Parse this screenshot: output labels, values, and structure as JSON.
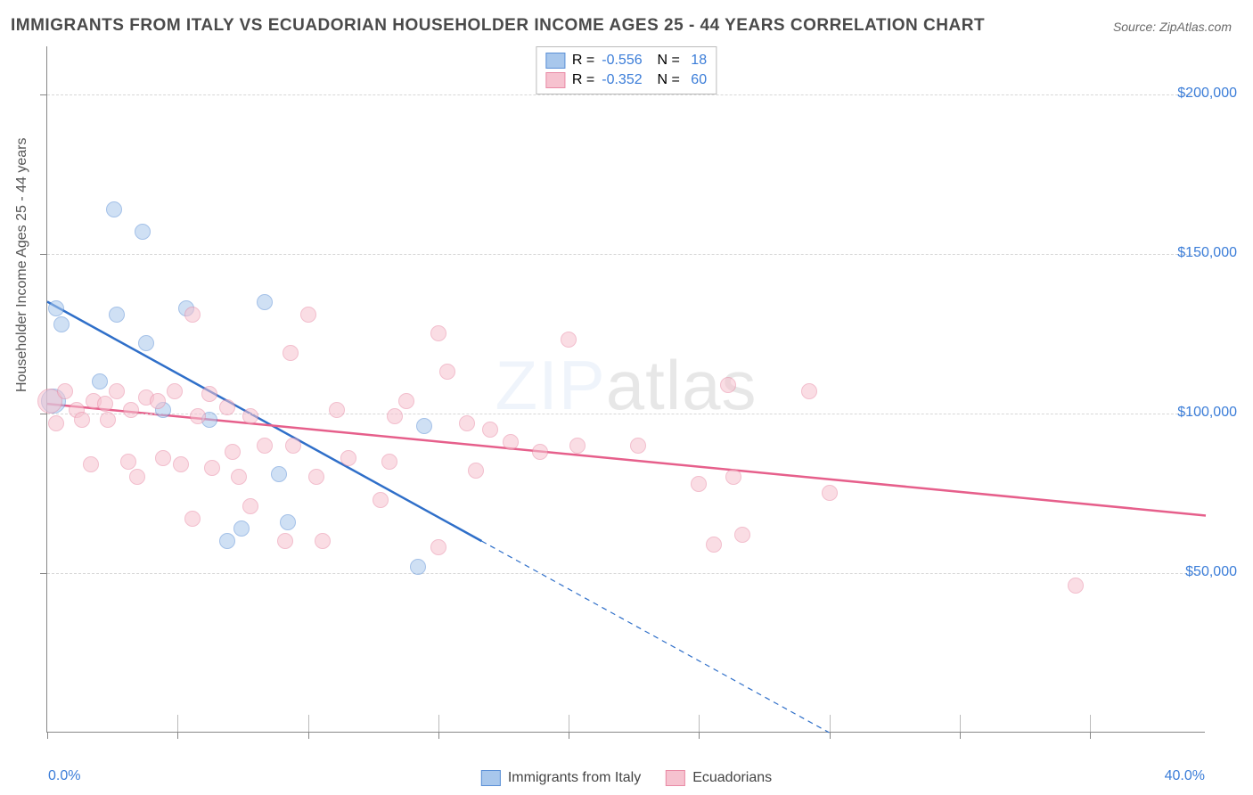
{
  "title": "IMMIGRANTS FROM ITALY VS ECUADORIAN HOUSEHOLDER INCOME AGES 25 - 44 YEARS CORRELATION CHART",
  "source": "Source: ZipAtlas.com",
  "ylabel": "Householder Income Ages 25 - 44 years",
  "watermark_a": "ZIP",
  "watermark_b": "atlas",
  "chart": {
    "type": "scatter-with-regression",
    "background_color": "#ffffff",
    "grid_color": "#d8d8d8",
    "axis_color": "#888888",
    "font_family": "Arial",
    "title_fontsize": 19,
    "title_color": "#4a4a4a",
    "label_fontsize": 16,
    "tick_label_color": "#3b7dd8",
    "xlim": [
      0.0,
      40.0
    ],
    "ylim": [
      0,
      215000
    ],
    "y_ticks": [
      50000,
      100000,
      150000,
      200000
    ],
    "y_tick_labels": [
      "$50,000",
      "$100,000",
      "$150,000",
      "$200,000"
    ],
    "x_min_label": "0.0%",
    "x_max_label": "40.0%",
    "x_tick_positions_pct": [
      0,
      4.5,
      9,
      13.5,
      18,
      22.5,
      27,
      31.5,
      36
    ],
    "marker_radius": 9,
    "marker_radius_large": 14,
    "marker_opacity": 0.55,
    "line_width": 2.5,
    "series": [
      {
        "name": "Immigrants from Italy",
        "key": "italy",
        "fill_color": "#a8c7ec",
        "stroke_color": "#5b8fd6",
        "line_color": "#2f6fc9",
        "R": "-0.556",
        "N": "18",
        "regression": {
          "x1": 0.0,
          "y1": 135000,
          "x2": 15.0,
          "y2": 60000,
          "extrap_x2": 27.0,
          "extrap_y2": 0
        },
        "points": [
          {
            "x": 0.3,
            "y": 133000
          },
          {
            "x": 0.5,
            "y": 128000
          },
          {
            "x": 0.2,
            "y": 104000,
            "large": true
          },
          {
            "x": 2.3,
            "y": 164000
          },
          {
            "x": 3.3,
            "y": 157000
          },
          {
            "x": 2.4,
            "y": 131000
          },
          {
            "x": 3.4,
            "y": 122000
          },
          {
            "x": 1.8,
            "y": 110000
          },
          {
            "x": 4.8,
            "y": 133000
          },
          {
            "x": 5.6,
            "y": 98000
          },
          {
            "x": 6.7,
            "y": 64000
          },
          {
            "x": 6.2,
            "y": 60000
          },
          {
            "x": 7.5,
            "y": 135000
          },
          {
            "x": 8.0,
            "y": 81000
          },
          {
            "x": 8.3,
            "y": 66000
          },
          {
            "x": 13.0,
            "y": 96000
          },
          {
            "x": 12.8,
            "y": 52000
          },
          {
            "x": 4.0,
            "y": 101000
          }
        ]
      },
      {
        "name": "Ecuadorians",
        "key": "ecuadorians",
        "fill_color": "#f6c2cf",
        "stroke_color": "#e98aa5",
        "line_color": "#e65f8b",
        "R": "-0.352",
        "N": "60",
        "regression": {
          "x1": 0.0,
          "y1": 103000,
          "x2": 40.0,
          "y2": 68000
        },
        "points": [
          {
            "x": 0.1,
            "y": 104000,
            "large": true
          },
          {
            "x": 0.3,
            "y": 97000
          },
          {
            "x": 0.6,
            "y": 107000
          },
          {
            "x": 1.0,
            "y": 101000
          },
          {
            "x": 1.2,
            "y": 98000
          },
          {
            "x": 1.6,
            "y": 104000
          },
          {
            "x": 1.5,
            "y": 84000
          },
          {
            "x": 2.0,
            "y": 103000
          },
          {
            "x": 2.1,
            "y": 98000
          },
          {
            "x": 2.4,
            "y": 107000
          },
          {
            "x": 2.9,
            "y": 101000
          },
          {
            "x": 2.8,
            "y": 85000
          },
          {
            "x": 3.4,
            "y": 105000
          },
          {
            "x": 3.1,
            "y": 80000
          },
          {
            "x": 3.8,
            "y": 104000
          },
          {
            "x": 4.0,
            "y": 86000
          },
          {
            "x": 4.4,
            "y": 107000
          },
          {
            "x": 4.6,
            "y": 84000
          },
          {
            "x": 5.0,
            "y": 131000
          },
          {
            "x": 5.2,
            "y": 99000
          },
          {
            "x": 5.0,
            "y": 67000
          },
          {
            "x": 5.6,
            "y": 106000
          },
          {
            "x": 5.7,
            "y": 83000
          },
          {
            "x": 6.2,
            "y": 102000
          },
          {
            "x": 6.4,
            "y": 88000
          },
          {
            "x": 6.6,
            "y": 80000
          },
          {
            "x": 7.0,
            "y": 99000
          },
          {
            "x": 7.0,
            "y": 71000
          },
          {
            "x": 7.5,
            "y": 90000
          },
          {
            "x": 8.4,
            "y": 119000
          },
          {
            "x": 8.5,
            "y": 90000
          },
          {
            "x": 8.2,
            "y": 60000
          },
          {
            "x": 9.0,
            "y": 131000
          },
          {
            "x": 9.3,
            "y": 80000
          },
          {
            "x": 9.5,
            "y": 60000
          },
          {
            "x": 10.0,
            "y": 101000
          },
          {
            "x": 10.4,
            "y": 86000
          },
          {
            "x": 11.8,
            "y": 85000
          },
          {
            "x": 11.5,
            "y": 73000
          },
          {
            "x": 12.4,
            "y": 104000
          },
          {
            "x": 13.5,
            "y": 125000
          },
          {
            "x": 13.8,
            "y": 113000
          },
          {
            "x": 13.5,
            "y": 58000
          },
          {
            "x": 14.5,
            "y": 97000
          },
          {
            "x": 14.8,
            "y": 82000
          },
          {
            "x": 15.3,
            "y": 95000
          },
          {
            "x": 16.0,
            "y": 91000
          },
          {
            "x": 17.0,
            "y": 88000
          },
          {
            "x": 18.0,
            "y": 123000
          },
          {
            "x": 18.3,
            "y": 90000
          },
          {
            "x": 20.4,
            "y": 90000
          },
          {
            "x": 22.5,
            "y": 78000
          },
          {
            "x": 23.5,
            "y": 109000
          },
          {
            "x": 23.0,
            "y": 59000
          },
          {
            "x": 23.7,
            "y": 80000
          },
          {
            "x": 24.0,
            "y": 62000
          },
          {
            "x": 26.3,
            "y": 107000
          },
          {
            "x": 27.0,
            "y": 75000
          },
          {
            "x": 35.5,
            "y": 46000
          },
          {
            "x": 12.0,
            "y": 99000
          }
        ]
      }
    ],
    "legend_bottom": [
      {
        "label": "Immigrants from Italy",
        "fill": "#a8c7ec",
        "stroke": "#5b8fd6"
      },
      {
        "label": "Ecuadorians",
        "fill": "#f6c2cf",
        "stroke": "#e98aa5"
      }
    ]
  }
}
